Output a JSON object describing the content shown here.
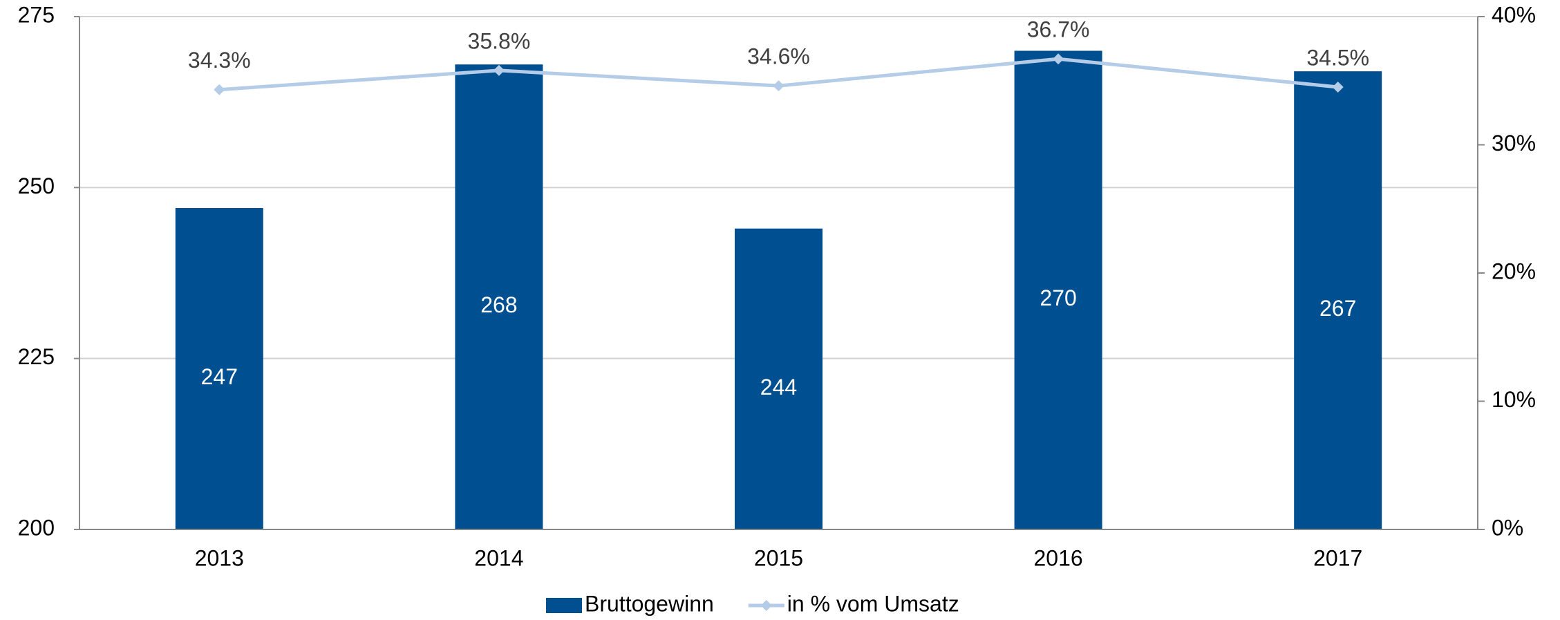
{
  "chart_data": {
    "type": "bar",
    "categories": [
      "2013",
      "2014",
      "2015",
      "2016",
      "2017"
    ],
    "series": [
      {
        "name": "Bruttogewinn",
        "color": "#004f91",
        "type": "bar",
        "values": [
          247,
          268,
          244,
          270,
          267
        ]
      },
      {
        "name": "in % vom Umsatz",
        "color": "#b4cce8",
        "type": "line",
        "axis": "y2",
        "values": [
          34.3,
          35.8,
          34.6,
          36.7,
          34.5
        ],
        "value_labels": [
          "34.3%",
          "35.8%",
          "34.6%",
          "36.7%",
          "34.5%"
        ]
      }
    ],
    "ylim": [
      200,
      275
    ],
    "yticks": [
      200,
      225,
      250,
      275
    ],
    "y2lim": [
      0,
      40
    ],
    "y2ticks": [
      {
        "value": 0,
        "label": "0%"
      },
      {
        "value": 10,
        "label": "10%"
      },
      {
        "value": 20,
        "label": "20%"
      },
      {
        "value": 30,
        "label": "30%"
      },
      {
        "value": 40,
        "label": "40%"
      }
    ],
    "grid": true,
    "legend": "bottom"
  }
}
